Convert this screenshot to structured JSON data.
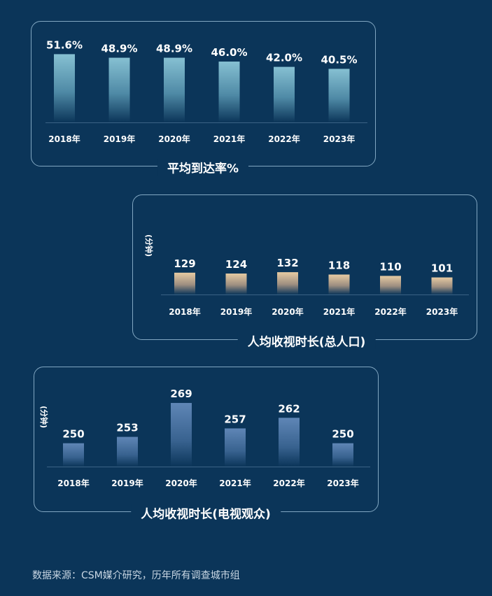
{
  "chart_data": [
    {
      "type": "bar",
      "title": "平均到达率%",
      "categories": [
        "2018年",
        "2019年",
        "2020年",
        "2021年",
        "2022年",
        "2023年"
      ],
      "values": [
        51.6,
        48.9,
        48.9,
        46.0,
        42.0,
        40.5
      ],
      "value_labels": [
        "51.6%",
        "48.9%",
        "48.9%",
        "46.0%",
        "42.0%",
        "40.5%"
      ],
      "ylabel": "",
      "ylim": [
        0,
        55
      ],
      "bar_color": "#7fb6c8"
    },
    {
      "type": "bar",
      "title": "人均收视时长(总人口)",
      "categories": [
        "2018年",
        "2019年",
        "2020年",
        "2021年",
        "2022年",
        "2023年"
      ],
      "values": [
        129,
        124,
        132,
        118,
        110,
        101
      ],
      "value_labels": [
        "129",
        "124",
        "132",
        "118",
        "110",
        "101"
      ],
      "ylabel": "(分钟)",
      "ylim": [
        0,
        360
      ],
      "bar_color": "#e2c6a0"
    },
    {
      "type": "bar",
      "title": "人均收视时长(电视观众)",
      "categories": [
        "2018年",
        "2019年",
        "2020年",
        "2021年",
        "2022年",
        "2023年"
      ],
      "values": [
        250,
        253,
        269,
        257,
        262,
        250
      ],
      "value_labels": [
        "250",
        "253",
        "269",
        "257",
        "262",
        "250"
      ],
      "ylabel": "(分钟)",
      "ylim": [
        239,
        270
      ],
      "bar_color": "#5d84b4"
    }
  ],
  "source_text": "数据来源：CSM媒介研究，历年所有调查城市组"
}
